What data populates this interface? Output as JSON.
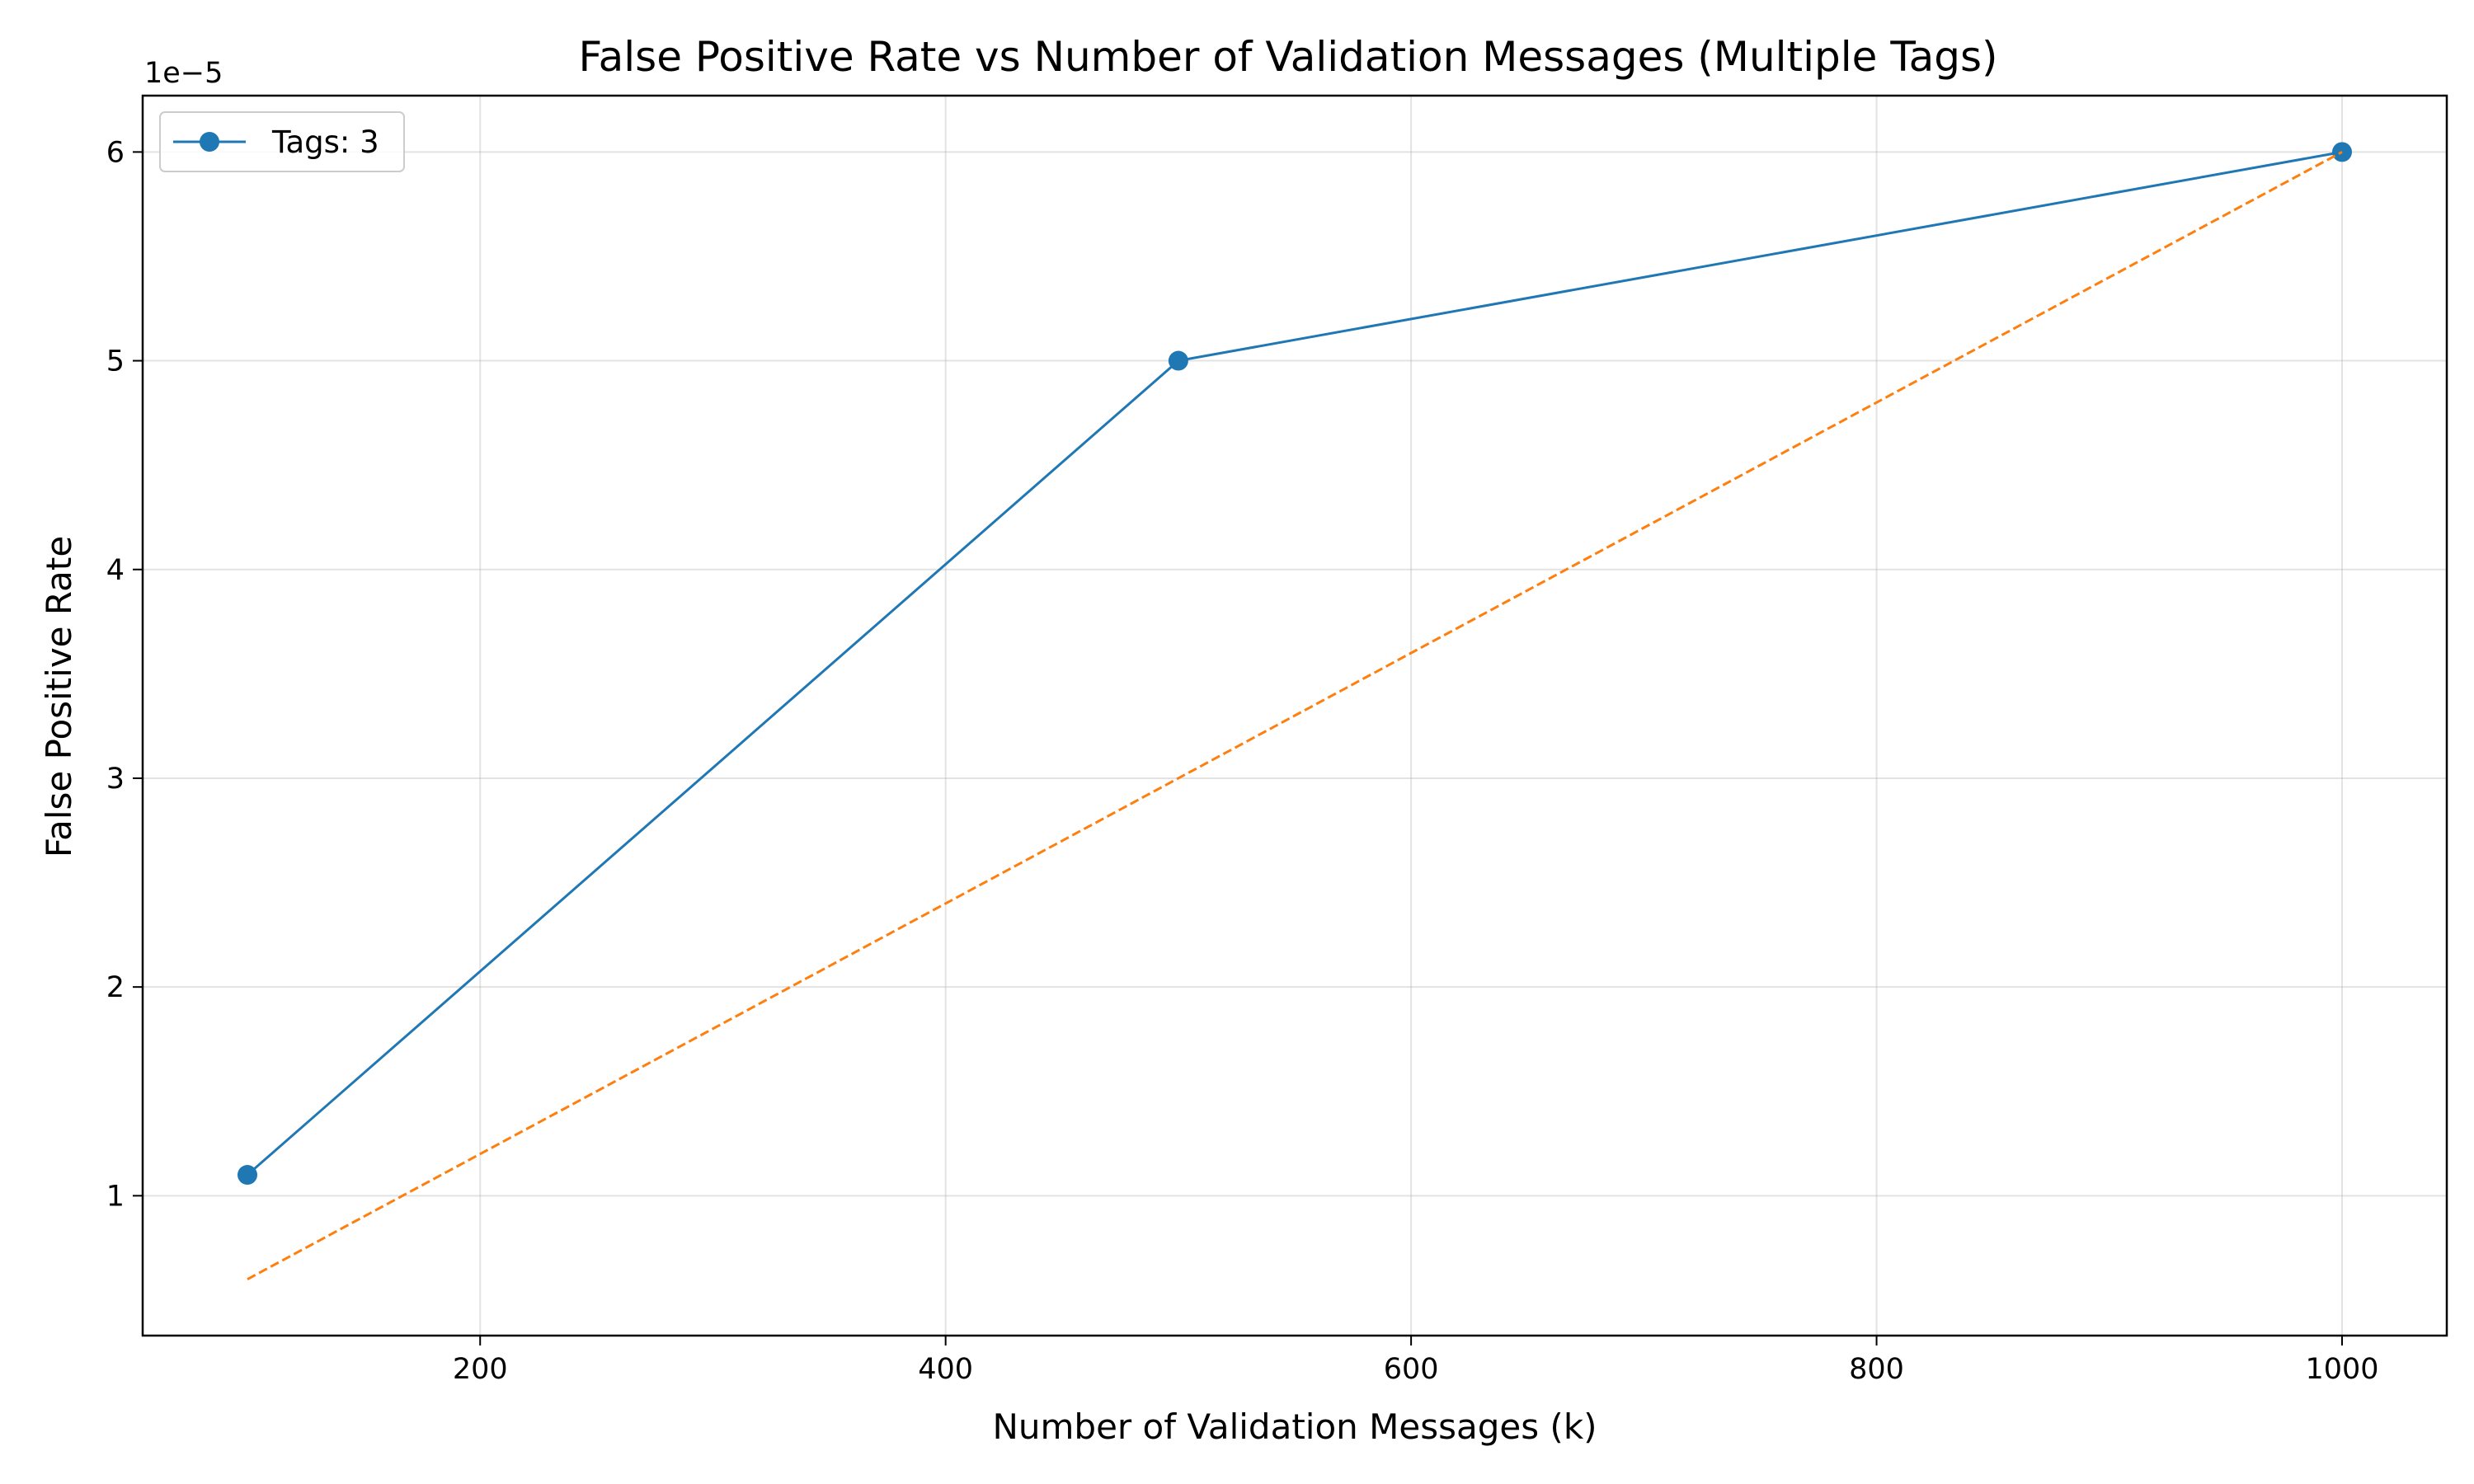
{
  "chart_data": {
    "type": "line",
    "title": "False Positive Rate vs Number of Validation Messages (Multiple Tags)",
    "xlabel": "Number of Validation Messages (k)",
    "ylabel": "False Positive Rate",
    "y_offset_label": "1e−5",
    "xlim": [
      55,
      1045
    ],
    "ylim": [
      0.33,
      6.27
    ],
    "x_ticks": [
      200,
      400,
      600,
      800,
      1000
    ],
    "x_tick_labels": [
      "200",
      "400",
      "600",
      "800",
      "1000"
    ],
    "y_ticks": [
      1,
      2,
      3,
      4,
      5,
      6
    ],
    "y_tick_labels": [
      "1",
      "2",
      "3",
      "4",
      "5",
      "6"
    ],
    "grid": true,
    "legend_position": "upper-left",
    "series": [
      {
        "name": "Tags: 3",
        "color": "#1f77b4",
        "style": "solid",
        "marker": "circle",
        "in_legend": true,
        "x": [
          100,
          500,
          1000
        ],
        "y": [
          1.1,
          5.0,
          6.0
        ]
      },
      {
        "name": "",
        "color": "#ff7f0e",
        "style": "dashed",
        "marker": "none",
        "in_legend": false,
        "x": [
          100,
          1000
        ],
        "y": [
          0.6,
          6.0
        ]
      }
    ]
  }
}
